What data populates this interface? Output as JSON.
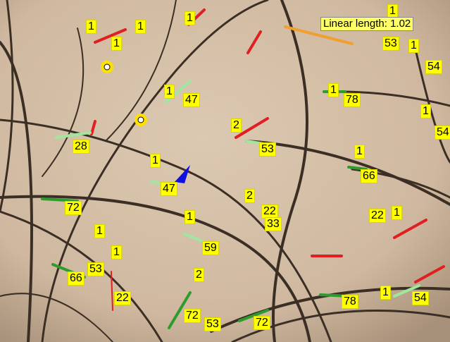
{
  "labels": [
    "1",
    "1",
    "1",
    "1",
    "1",
    "53",
    "1",
    "54",
    "1",
    "47",
    "1",
    "78",
    "1",
    "54",
    "2",
    "53",
    "28",
    "1",
    "47",
    "1",
    "66",
    "72",
    "2",
    "22",
    "33",
    "22",
    "1",
    "1",
    "59",
    "1",
    "1",
    "53",
    "66",
    "22",
    "2",
    "72",
    "53",
    "72",
    "78",
    "1",
    "54"
  ],
  "measurement": "Linear length: 1.02"
}
